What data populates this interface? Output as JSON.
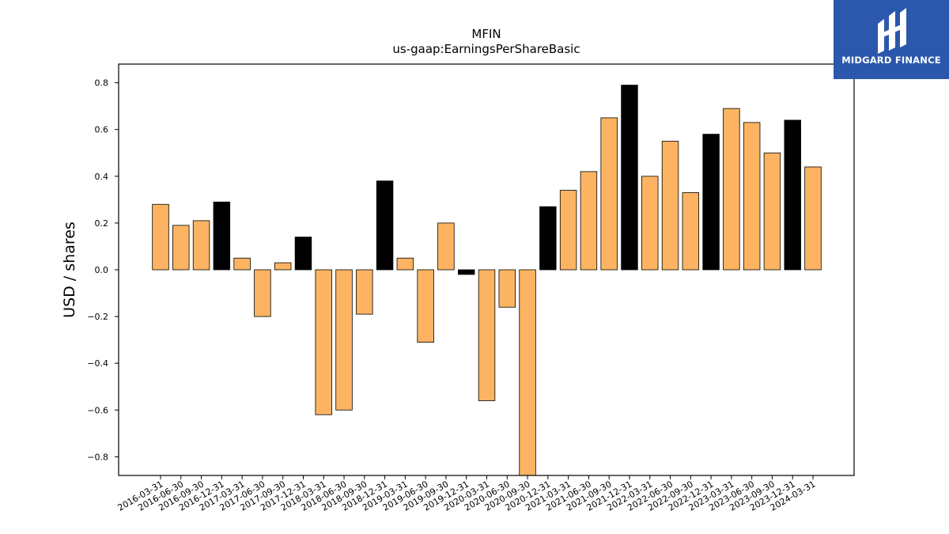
{
  "brand": {
    "name": "MIDGARD FINANCE",
    "logo_icon": "midgard-finance-logo-icon",
    "background_color": "#2b58ad"
  },
  "chart_data": {
    "type": "bar",
    "title": "MFIN",
    "subtitle": "us-gaap:EarningsPerShareBasic",
    "xlabel": "",
    "ylabel": "USD / shares",
    "ylim": [
      -0.88,
      0.88
    ],
    "yticks": [
      -0.8,
      -0.6,
      -0.4,
      -0.2,
      0.0,
      0.2,
      0.4,
      0.6,
      0.8
    ],
    "grid": false,
    "colors": {
      "quarter": "#fdb462",
      "year_end": "#000000",
      "edge": "#000000"
    },
    "categories": [
      "2016-03-31",
      "2016-06-30",
      "2016-09-30",
      "2016-12-31",
      "2017-03-31",
      "2017-06-30",
      "2017-09-30",
      "2017-12-31",
      "2018-03-31",
      "2018-06-30",
      "2018-09-30",
      "2018-12-31",
      "2019-03-31",
      "2019-06-30",
      "2019-09-30",
      "2019-12-31",
      "2020-03-31",
      "2020-06-30",
      "2020-09-30",
      "2020-12-31",
      "2021-03-31",
      "2021-06-30",
      "2021-09-30",
      "2021-12-31",
      "2022-03-31",
      "2022-06-30",
      "2022-09-30",
      "2022-12-31",
      "2023-03-31",
      "2023-06-30",
      "2023-09-30",
      "2023-12-31",
      "2024-03-31"
    ],
    "values": [
      0.28,
      0.19,
      0.21,
      0.29,
      0.05,
      -0.2,
      0.03,
      0.14,
      -0.62,
      -0.6,
      -0.19,
      0.38,
      0.05,
      -0.31,
      0.2,
      -0.02,
      -0.56,
      -0.16,
      -0.95,
      0.27,
      0.34,
      0.42,
      0.65,
      0.79,
      0.4,
      0.55,
      0.33,
      0.58,
      0.69,
      0.63,
      0.5,
      0.64,
      0.44
    ],
    "bar_colors": [
      "quarter",
      "quarter",
      "quarter",
      "year_end",
      "quarter",
      "quarter",
      "quarter",
      "year_end",
      "quarter",
      "quarter",
      "quarter",
      "year_end",
      "quarter",
      "quarter",
      "quarter",
      "year_end",
      "quarter",
      "quarter",
      "quarter",
      "year_end",
      "quarter",
      "quarter",
      "quarter",
      "year_end",
      "quarter",
      "quarter",
      "quarter",
      "year_end",
      "quarter",
      "quarter",
      "quarter",
      "year_end",
      "quarter"
    ]
  }
}
